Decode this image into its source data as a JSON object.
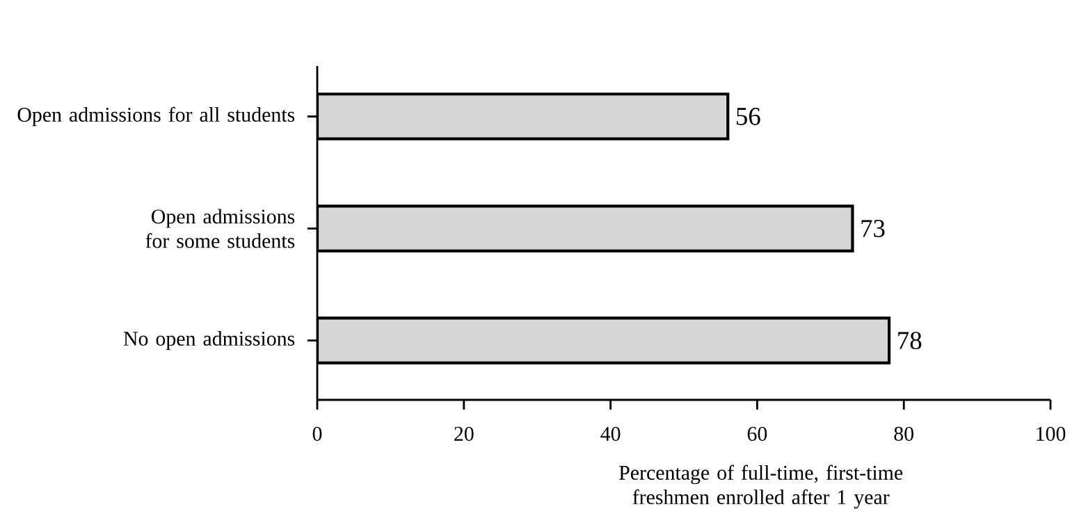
{
  "chart_data": {
    "type": "bar",
    "orientation": "horizontal",
    "categories": [
      "Open admissions for all students",
      "Open admissions for some students",
      "No open admissions"
    ],
    "values": [
      56,
      73,
      78
    ],
    "color": "#d6d6d6",
    "xlim": [
      0,
      100
    ],
    "xticks": [
      0,
      20,
      40,
      60,
      80,
      100
    ],
    "xlabel": "Percentage of full-time, first-time freshmen enrolled after 1 year",
    "data_labels": true,
    "grid": false
  }
}
